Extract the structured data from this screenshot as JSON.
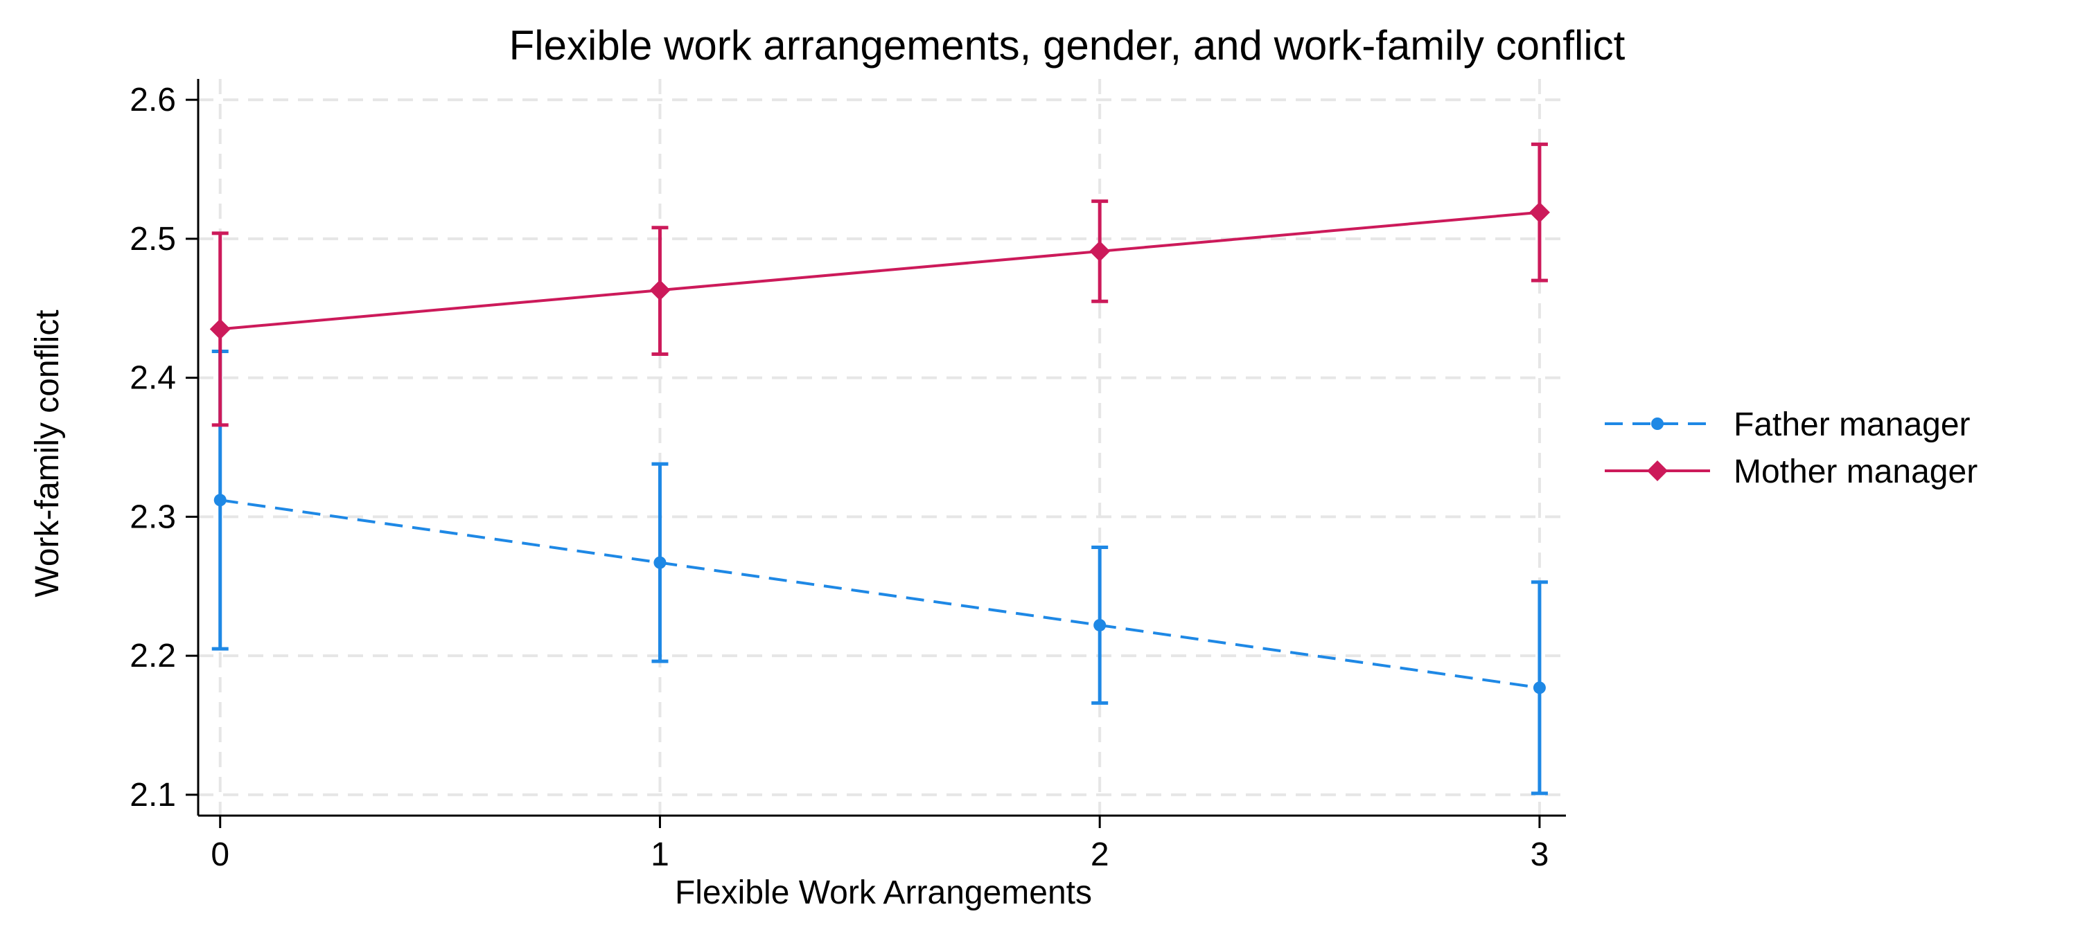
{
  "chart_data": {
    "type": "line",
    "title": "Flexible work arrangements, gender, and work-family conflict",
    "xlabel": "Flexible Work Arrangements",
    "ylabel": "Work-family conflict",
    "x": [
      0,
      1,
      2,
      3
    ],
    "x_ticks": [
      "0",
      "1",
      "2",
      "3"
    ],
    "y_ticks": [
      "2.1",
      "2.2",
      "2.3",
      "2.4",
      "2.5",
      "2.6"
    ],
    "xlim": [
      -0.05,
      3.06
    ],
    "ylim": [
      2.085,
      2.615
    ],
    "grid": true,
    "legend_position": "right",
    "series": [
      {
        "name": "Father manager",
        "color": "#1E88E5",
        "line_style": "dashed",
        "marker": "circle",
        "values": [
          2.312,
          2.267,
          2.222,
          2.177
        ],
        "ci_lower": [
          2.205,
          2.196,
          2.166,
          2.101
        ],
        "ci_upper": [
          2.419,
          2.338,
          2.278,
          2.253
        ]
      },
      {
        "name": "Mother manager",
        "color": "#CC1A5A",
        "line_style": "solid",
        "marker": "diamond",
        "values": [
          2.435,
          2.463,
          2.491,
          2.519
        ],
        "ci_lower": [
          2.366,
          2.417,
          2.455,
          2.47
        ],
        "ci_upper": [
          2.504,
          2.508,
          2.527,
          2.568
        ]
      }
    ]
  }
}
